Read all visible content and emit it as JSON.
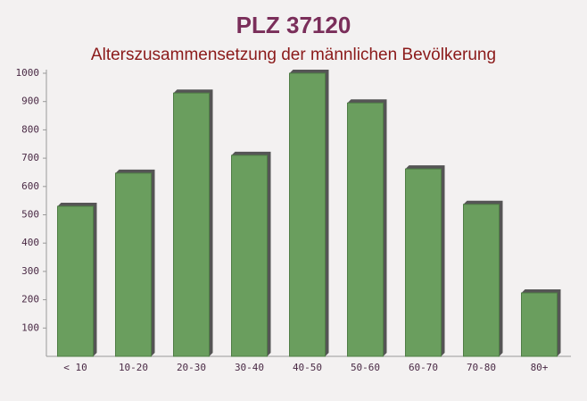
{
  "chart_data": {
    "type": "bar",
    "title": "PLZ 37120",
    "subtitle": "Alterszusammensetzung der männlichen Bevölkerung",
    "categories": [
      "< 10",
      "10-20",
      "20-30",
      "30-40",
      "40-50",
      "50-60",
      "60-70",
      "70-80",
      "80+"
    ],
    "values": [
      530,
      647,
      930,
      710,
      1000,
      895,
      662,
      537,
      224
    ],
    "color": "#6a9e5e",
    "ylim": [
      0,
      1000
    ],
    "yticks": [
      100,
      200,
      300,
      400,
      500,
      600,
      700,
      800,
      900,
      1000
    ],
    "grid": false
  }
}
